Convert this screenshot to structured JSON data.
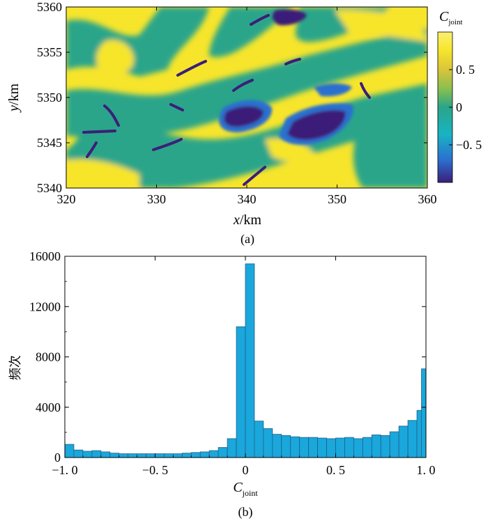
{
  "chart_data": [
    {
      "type": "heatmap",
      "panel_label": "(a)",
      "xlabel_var": "x",
      "xlabel_unit": "/km",
      "ylabel_var": "y",
      "ylabel_unit": "/km",
      "xlim": [
        320,
        360
      ],
      "ylim": [
        5340,
        5360
      ],
      "xticks": [
        320,
        330,
        340,
        350,
        360
      ],
      "yticks": [
        5340,
        5345,
        5350,
        5355,
        5360
      ],
      "colorbar": {
        "title_main": "C",
        "title_sub": "joint",
        "range": [
          -1,
          1
        ],
        "ticks": [
          0.5,
          0,
          -0.5
        ],
        "tick_labels": [
          "0. 5",
          "0",
          "−0. 5"
        ],
        "colors": [
          "#3b1f78",
          "#2b6fcf",
          "#19b3c2",
          "#2aa58a",
          "#86bf50",
          "#d9c43a",
          "#f7e52c",
          "#fbf072"
        ]
      }
    },
    {
      "type": "bar",
      "panel_label": "(b)",
      "ylabel": "频次",
      "xlabel_main": "C",
      "xlabel_sub": "joint",
      "xlim": [
        -1,
        1
      ],
      "ylim": [
        0,
        16000
      ],
      "xticks": [
        -1,
        -0.5,
        0,
        0.5,
        1
      ],
      "xtick_labels": [
        "−1. 0",
        "−0. 5",
        "0",
        "0. 5",
        "1. 0"
      ],
      "yticks": [
        0,
        4000,
        8000,
        12000,
        16000
      ],
      "ytick_labels": [
        "0",
        "4000",
        "8000",
        "12000",
        "16000"
      ],
      "bin_width": 0.05,
      "bin_starts": [
        -1.0,
        -0.95,
        -0.9,
        -0.85,
        -0.8,
        -0.75,
        -0.7,
        -0.65,
        -0.6,
        -0.55,
        -0.5,
        -0.45,
        -0.4,
        -0.35,
        -0.3,
        -0.25,
        -0.2,
        -0.15,
        -0.1,
        -0.05,
        0.0,
        0.05,
        0.1,
        0.15,
        0.2,
        0.25,
        0.3,
        0.35,
        0.4,
        0.45,
        0.5,
        0.55,
        0.6,
        0.65,
        0.7,
        0.75,
        0.8,
        0.85,
        0.9,
        0.95
      ],
      "values": [
        1050,
        600,
        500,
        550,
        450,
        350,
        300,
        300,
        300,
        300,
        300,
        300,
        300,
        350,
        400,
        450,
        550,
        800,
        1500,
        10400,
        15400,
        2900,
        2300,
        1850,
        1750,
        1650,
        1600,
        1600,
        1550,
        1500,
        1550,
        1600,
        1500,
        1600,
        1800,
        1750,
        2050,
        2500,
        2950,
        3750
      ],
      "last_bin": 7050,
      "bar_color": "#1aa7dc"
    }
  ]
}
